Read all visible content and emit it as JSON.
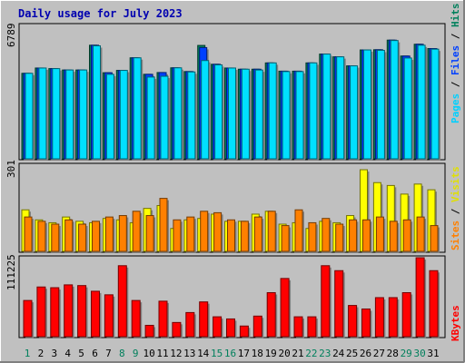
{
  "chart_data": [
    {
      "type": "bar",
      "title": "Daily usage for July 2023",
      "categories": [
        "1",
        "2",
        "3",
        "4",
        "5",
        "6",
        "7",
        "8",
        "9",
        "10",
        "11",
        "12",
        "13",
        "14",
        "15",
        "16",
        "17",
        "18",
        "19",
        "20",
        "21",
        "22",
        "23",
        "24",
        "25",
        "26",
        "27",
        "28",
        "29",
        "30",
        "31"
      ],
      "weekend_categories": [
        "1",
        "8",
        "9",
        "15",
        "16",
        "22",
        "23",
        "29",
        "30"
      ],
      "y_tick_label": "6789",
      "ylim": [
        0,
        6789
      ],
      "series_label_parts": [
        "Pages",
        "Files",
        "Hits"
      ],
      "series": [
        {
          "name": "Hits",
          "color": "#00805c",
          "values": [
            4350,
            4620,
            4590,
            4520,
            4520,
            5780,
            4380,
            4500,
            5140,
            4300,
            4390,
            4630,
            4440,
            5770,
            4810,
            4620,
            4560,
            4560,
            4880,
            4460,
            4460,
            4880,
            5330,
            5190,
            4730,
            5540,
            5550,
            6040,
            5230,
            5830,
            5610
          ]
        },
        {
          "name": "Files",
          "color": "#0040ff",
          "values": [
            4350,
            4620,
            4590,
            4520,
            4520,
            5780,
            4380,
            4500,
            5140,
            4300,
            4390,
            4630,
            4440,
            5660,
            4810,
            4620,
            4560,
            4560,
            4880,
            4460,
            4460,
            4880,
            5330,
            5190,
            4730,
            5540,
            5550,
            6040,
            5230,
            5830,
            5610
          ]
        },
        {
          "name": "Pages",
          "color": "#00e0ff",
          "values": [
            4350,
            4620,
            4590,
            4520,
            4520,
            5750,
            4300,
            4500,
            5140,
            4160,
            4200,
            4630,
            4420,
            5000,
            4780,
            4620,
            4560,
            4520,
            4880,
            4440,
            4440,
            4880,
            5330,
            5190,
            4730,
            5540,
            5520,
            6020,
            5130,
            5780,
            5580
          ]
        }
      ]
    },
    {
      "type": "bar",
      "y_tick_label": "301",
      "ylim": [
        0,
        301
      ],
      "series_label_parts": [
        "Sites",
        "Visits"
      ],
      "series": [
        {
          "name": "Visits",
          "color": "#ffff00",
          "values": [
            145,
            110,
            100,
            120,
            105,
            100,
            115,
            110,
            100,
            150,
            160,
            80,
            110,
            115,
            130,
            105,
            105,
            130,
            140,
            95,
            100,
            80,
            105,
            100,
            125,
            285,
            240,
            230,
            200,
            235,
            215
          ]
        },
        {
          "name": "Sites",
          "color": "#ff8000",
          "values": [
            120,
            105,
            95,
            110,
            95,
            105,
            120,
            125,
            140,
            125,
            185,
            110,
            120,
            140,
            135,
            110,
            105,
            120,
            140,
            90,
            145,
            100,
            115,
            95,
            110,
            110,
            120,
            105,
            110,
            120,
            90
          ]
        }
      ]
    },
    {
      "type": "bar",
      "y_tick_label": "111225",
      "ylim": [
        0,
        111225
      ],
      "series_label_parts": [
        "KBytes"
      ],
      "series": [
        {
          "name": "KBytes",
          "color": "#ff0000",
          "values": [
            51000,
            70000,
            69000,
            73000,
            72000,
            64000,
            59000,
            100000,
            51000,
            16000,
            50000,
            20000,
            34000,
            49000,
            28000,
            25000,
            15000,
            29000,
            62000,
            82000,
            28000,
            28000,
            100000,
            93000,
            44000,
            39000,
            55000,
            55000,
            62000,
            111225,
            93000
          ]
        }
      ]
    }
  ]
}
